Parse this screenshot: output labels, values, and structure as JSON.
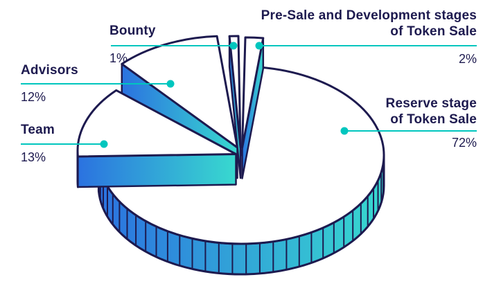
{
  "chart_data": {
    "type": "pie",
    "style": "3d-exploded",
    "direction": "clockwise",
    "start_angle_deg": 0,
    "unit": "%",
    "slices": [
      {
        "id": "presale",
        "label": "Pre-Sale and Development stages of Token Sale",
        "value": 2
      },
      {
        "id": "reserve",
        "label": "Reserve stage of Token Sale",
        "value": 72
      },
      {
        "id": "team",
        "label": "Team",
        "value": 13
      },
      {
        "id": "advisors",
        "label": "Advisors",
        "value": 12
      },
      {
        "id": "bounty",
        "label": "Bounty",
        "value": 1
      }
    ]
  },
  "labels": {
    "bounty": {
      "name": "Bounty",
      "pct": "1%"
    },
    "presale": {
      "line1": "Pre-Sale and Development stages",
      "line2": "of Token Sale",
      "pct": "2%"
    },
    "advisors": {
      "name": "Advisors",
      "pct": "12%"
    },
    "team": {
      "name": "Team",
      "pct": "13%"
    },
    "reserve": {
      "line1": "Reserve stage",
      "line2": "of Token Sale",
      "pct": "72%"
    }
  },
  "colors": {
    "text": "#1d1a4f",
    "outline": "#1d1a4f",
    "callout": "#00c6be",
    "top_fill": "#ffffff",
    "gradient_start": "#2b72e0",
    "gradient_end": "#38d9cf",
    "background": "#ffffff"
  }
}
